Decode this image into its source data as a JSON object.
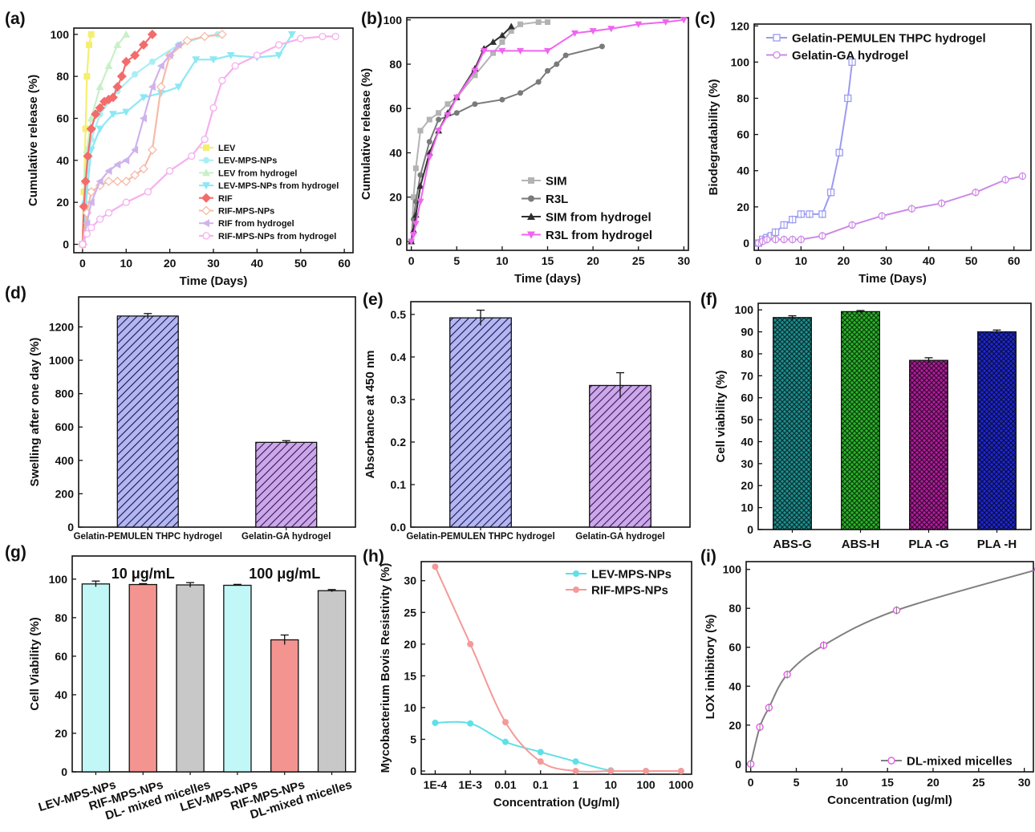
{
  "chart_data": [
    {
      "panel": "(a)",
      "type": "line",
      "xlabel": "Time (Days)",
      "ylabel": "Cumulative release (%)",
      "xlim": [
        -2,
        62
      ],
      "ylim": [
        -4,
        103
      ],
      "xticks": [
        0,
        10,
        20,
        30,
        40,
        50,
        60
      ],
      "yticks": [
        0,
        20,
        40,
        60,
        80,
        100
      ],
      "legend": "bottom-right",
      "series": [
        {
          "name": "LEV",
          "color": "#f4ef70",
          "marker": "square",
          "x": [
            0,
            0.3,
            0.7,
            1,
            1.5,
            2
          ],
          "y": [
            0,
            25,
            55,
            80,
            95,
            100
          ]
        },
        {
          "name": "LEV-MPS-NPs",
          "color": "#a8eff3",
          "marker": "circle",
          "x": [
            0,
            0.5,
            1,
            2,
            4,
            8,
            12,
            16,
            22,
            28,
            31
          ],
          "y": [
            0,
            20,
            35,
            50,
            62,
            73,
            81,
            87,
            95,
            99,
            100
          ]
        },
        {
          "name": "LEV from hydrogel",
          "color": "#c8f0c8",
          "marker": "triangle",
          "x": [
            0,
            0.5,
            1,
            2,
            4,
            6,
            8,
            10
          ],
          "y": [
            0,
            30,
            45,
            60,
            75,
            85,
            95,
            100
          ]
        },
        {
          "name": "LEV-MPS-NPs from hydrogel",
          "color": "#8ce8f4",
          "marker": "triangle-down",
          "x": [
            0,
            1,
            2,
            4,
            7,
            10,
            14,
            18,
            22,
            26,
            30,
            34,
            40,
            45,
            48
          ],
          "y": [
            0,
            25,
            45,
            55,
            62,
            63,
            70,
            72,
            75,
            88,
            88,
            90,
            89,
            90,
            100
          ]
        },
        {
          "name": "RIF",
          "color": "#f36b6b",
          "marker": "diamond",
          "x": [
            0,
            0.3,
            0.7,
            1.2,
            2,
            3,
            4,
            5,
            6,
            7,
            8,
            9,
            10,
            12,
            14,
            16
          ],
          "y": [
            0,
            18,
            30,
            42,
            55,
            62,
            65,
            68,
            69,
            70,
            75,
            80,
            87,
            90,
            95,
            100
          ]
        },
        {
          "name": "RIF-MPS-NPs",
          "color": "#f7baa8",
          "marker": "diamond-open",
          "x": [
            0,
            1,
            2,
            4,
            6,
            8,
            10,
            12,
            14,
            16,
            18,
            20,
            24,
            28,
            32
          ],
          "y": [
            0,
            15,
            25,
            28,
            30,
            30,
            30,
            33,
            36,
            45,
            75,
            90,
            97,
            99,
            100
          ]
        },
        {
          "name": "RIF from hydrogel",
          "color": "#cfb3ec",
          "marker": "triangle-left",
          "x": [
            0,
            1,
            2,
            4,
            6,
            8,
            10,
            12,
            14,
            16,
            18,
            20,
            22
          ],
          "y": [
            0,
            10,
            20,
            30,
            35,
            38,
            40,
            45,
            60,
            75,
            85,
            90,
            95
          ]
        },
        {
          "name": "RIF-MPS-NPs from hydrogel",
          "color": "#f6b0ef",
          "marker": "circle-open",
          "x": [
            0,
            1,
            2,
            4,
            6,
            10,
            15,
            20,
            25,
            28,
            30,
            32,
            35,
            40,
            45,
            50,
            55,
            58
          ],
          "y": [
            0,
            5,
            8,
            12,
            15,
            20,
            25,
            35,
            42,
            50,
            65,
            78,
            85,
            90,
            95,
            98,
            99,
            99
          ]
        }
      ]
    },
    {
      "panel": "(b)",
      "type": "line",
      "xlabel": "Time (days)",
      "ylabel": "Cumulative release (%)",
      "xlim": [
        -0.5,
        30.5
      ],
      "ylim": [
        -4,
        101
      ],
      "xticks": [
        0,
        5,
        10,
        15,
        20,
        25,
        30
      ],
      "yticks": [
        0,
        20,
        40,
        60,
        80,
        100
      ],
      "legend": "bottom-right",
      "series": [
        {
          "name": "SIM",
          "color": "#b3b3b3",
          "marker": "square",
          "x": [
            0,
            0.25,
            0.5,
            1,
            2,
            3,
            4,
            5,
            7,
            9,
            10,
            11,
            12,
            14,
            15
          ],
          "y": [
            0,
            20,
            33,
            50,
            55,
            58,
            62,
            65,
            75,
            85,
            90,
            95,
            98,
            99,
            99
          ]
        },
        {
          "name": "R3L",
          "color": "#7a7a7a",
          "marker": "circle",
          "x": [
            0,
            0.25,
            0.5,
            1,
            2,
            3,
            5,
            7,
            10,
            12,
            14,
            15,
            16,
            17,
            21
          ],
          "y": [
            0,
            10,
            18,
            30,
            45,
            55,
            58,
            62,
            64,
            67,
            72,
            77,
            80,
            84,
            88
          ]
        },
        {
          "name": "SIM from hydrogel",
          "color": "#303030",
          "marker": "triangle",
          "x": [
            0,
            0.25,
            0.5,
            1,
            2,
            3,
            4,
            5,
            7,
            8,
            9,
            10,
            11
          ],
          "y": [
            0,
            5,
            12,
            25,
            40,
            50,
            58,
            65,
            78,
            87,
            90,
            93,
            97
          ]
        },
        {
          "name": "R3L from hydrogel",
          "color": "#f064f0",
          "marker": "triangle-down",
          "x": [
            0,
            0.25,
            0.5,
            1,
            2,
            3,
            4,
            5,
            7,
            8,
            10,
            12,
            15,
            18,
            20,
            22,
            25,
            28,
            30
          ],
          "y": [
            0,
            3,
            8,
            18,
            38,
            50,
            57,
            65,
            77,
            86,
            86,
            86,
            86,
            94,
            95,
            96,
            98,
            99,
            100
          ]
        }
      ]
    },
    {
      "panel": "(c)",
      "type": "line",
      "xlabel": "Time (Days)",
      "ylabel": "Biodegradability (%)",
      "xlim": [
        -1,
        64
      ],
      "ylim": [
        -4,
        121
      ],
      "xticks": [
        0,
        10,
        20,
        30,
        40,
        50,
        60
      ],
      "yticks": [
        0,
        20,
        40,
        60,
        80,
        100,
        120
      ],
      "legend": "top-left",
      "series": [
        {
          "name": "Gelatin-PEMULEN THPC hydrogel",
          "color": "#9b9bf2",
          "marker": "square-open",
          "x": [
            0,
            1,
            2,
            3,
            4,
            6,
            8,
            10,
            12,
            15,
            17,
            19,
            21,
            22
          ],
          "y": [
            0,
            2,
            3,
            4,
            6,
            10,
            13,
            16,
            16,
            16,
            28,
            50,
            80,
            100
          ]
        },
        {
          "name": "Gelatin-GA hydrogel",
          "color": "#cc8ae6",
          "marker": "circle-open",
          "x": [
            0,
            1,
            2,
            4,
            6,
            8,
            10,
            15,
            22,
            29,
            36,
            43,
            51,
            58,
            62
          ],
          "y": [
            0,
            1,
            2,
            2,
            2,
            2,
            2,
            4,
            10,
            15,
            19,
            22,
            28,
            35,
            37
          ]
        }
      ]
    },
    {
      "panel": "(d)",
      "type": "bar",
      "categories": [
        "Gelatin-PEMULEN THPC hydrogel",
        "Gelatin-GA hydrogel"
      ],
      "values": [
        1265,
        508
      ],
      "errors": [
        15,
        10
      ],
      "colors": [
        "#b4b6f0",
        "#cba8ea"
      ],
      "xlabel": "",
      "ylabel": "Swelling after one day (%)",
      "ylim": [
        0,
        1380
      ],
      "yticks": [
        0,
        200,
        400,
        600,
        800,
        1000,
        1200
      ]
    },
    {
      "panel": "(e)",
      "type": "bar",
      "categories": [
        "Gelatin-PEMULEN THPC hydrogel",
        "Gelatin-GA hydrogel"
      ],
      "values": [
        0.492,
        0.333
      ],
      "errors": [
        0.018,
        0.03
      ],
      "colors": [
        "#b4b6f0",
        "#cba8ea"
      ],
      "xlabel": "",
      "ylabel": "Absorbance at 450 nm",
      "ylim": [
        0,
        0.53
      ],
      "yticks": [
        0.0,
        0.1,
        0.2,
        0.3,
        0.4,
        0.5
      ]
    },
    {
      "panel": "(f)",
      "type": "bar",
      "categories": [
        "ABS-G",
        "ABS-H",
        "PLA -G",
        "PLA -H"
      ],
      "values": [
        96.5,
        99.2,
        77.0,
        90.0
      ],
      "errors": [
        0.8,
        0.5,
        1.2,
        0.8
      ],
      "colors": [
        "#1e8f8f",
        "#2db42d",
        "#b01e9c",
        "#1e28d2"
      ],
      "xlabel": "",
      "ylabel": "Cell viability (%)",
      "ylim": [
        0,
        103
      ],
      "yticks": [
        0,
        10,
        20,
        30,
        40,
        50,
        60,
        70,
        80,
        90,
        100
      ]
    },
    {
      "panel": "(g)",
      "type": "bar",
      "categories": [
        "LEV-MPS-NPs",
        "RIF-MPS-NPs",
        "DL- mixed micelles",
        "LEV-MPS-NPs",
        "RIF-MPS-NPs",
        "DL-mixed micelles"
      ],
      "values": [
        97.5,
        97.2,
        97.0,
        96.8,
        68.5,
        94.0
      ],
      "errors": [
        1.5,
        0,
        1.2,
        0,
        2.5,
        0.6
      ],
      "colors": [
        "#c2f7f7",
        "#f49490",
        "#c8c8c8",
        "#c2f7f7",
        "#f49490",
        "#c8c8c8"
      ],
      "groups": [
        "10 μg/mL",
        "100 μg/mL"
      ],
      "xlabel": "",
      "ylabel": "Cell Viability (%)",
      "ylim": [
        0,
        112
      ],
      "yticks": [
        0,
        20,
        40,
        60,
        80,
        100
      ]
    },
    {
      "panel": "(h)",
      "type": "line",
      "xscale": "log",
      "xlabel": "Concentration (Ug/ml)",
      "ylabel": "Mycobacterium Bovis Resistivity (%)",
      "xlim": [
        4e-05,
        2000
      ],
      "ylim": [
        -0.5,
        33
      ],
      "xticks": [
        0.0001,
        0.001,
        0.01,
        0.1,
        1,
        10,
        100,
        1000
      ],
      "xticklabels": [
        "1E-4",
        "1E-3",
        "0.01",
        "0.1",
        "1",
        "10",
        "100",
        "1000"
      ],
      "yticks": [
        0,
        5,
        10,
        15,
        20,
        25,
        30
      ],
      "legend": "top-right",
      "series": [
        {
          "name": "LEV-MPS-NPs",
          "color": "#5fe0e6",
          "marker": "circle",
          "x": [
            0.0001,
            0.001,
            0.01,
            0.1,
            1,
            10,
            100,
            1000
          ],
          "y": [
            7.6,
            7.5,
            4.6,
            3.0,
            1.5,
            0.1,
            0,
            0
          ]
        },
        {
          "name": "RIF-MPS-NPs",
          "color": "#f59a98",
          "marker": "circle",
          "x": [
            0.0001,
            0.001,
            0.01,
            0.1,
            1,
            10,
            100,
            1000
          ],
          "y": [
            32.2,
            20.0,
            7.7,
            1.5,
            0,
            0,
            0,
            0
          ]
        }
      ]
    },
    {
      "panel": "(i)",
      "type": "line",
      "xlabel": "Concentration (ug/ml)",
      "ylabel": "LOX inhibitory (%)",
      "xlim": [
        -0.5,
        31
      ],
      "ylim": [
        -4,
        104
      ],
      "xticks": [
        0,
        5,
        10,
        15,
        20,
        25,
        30
      ],
      "yticks": [
        0,
        20,
        40,
        60,
        80,
        100
      ],
      "legend": "bottom-right",
      "series": [
        {
          "name": "DL-mixed micelles",
          "color": "#7f7f7f",
          "marker": "circle-open-magenta",
          "x": [
            0,
            1,
            2,
            4,
            8,
            16,
            31.5
          ],
          "y": [
            0,
            19,
            29,
            46,
            61,
            79,
            100
          ]
        }
      ]
    }
  ]
}
